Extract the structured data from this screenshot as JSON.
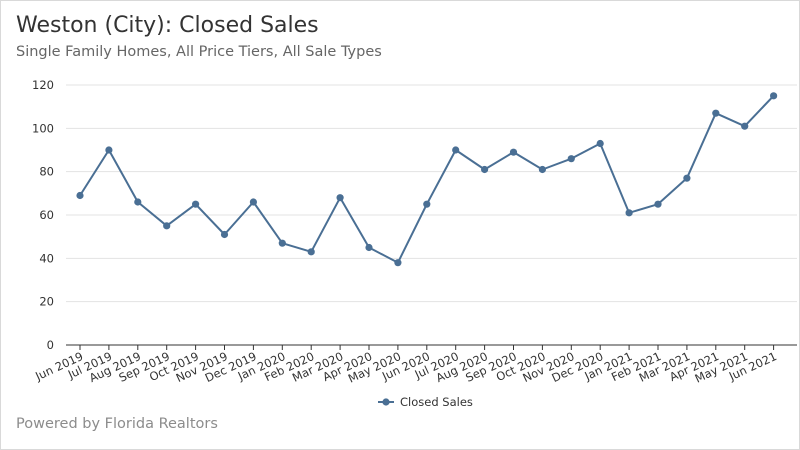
{
  "header": {
    "title": "Weston (City): Closed Sales",
    "subtitle": "Single Family Homes, All Price Tiers, All Sale Types"
  },
  "footer": {
    "credit": "Powered by Florida Realtors"
  },
  "colors": {
    "series": "#4a6f94",
    "grid": "#e3e3e3",
    "axis": "#333333"
  },
  "chart_data": {
    "type": "line",
    "title": "Weston (City): Closed Sales",
    "subtitle": "Single Family Homes, All Price Tiers, All Sale Types",
    "xlabel": "",
    "ylabel": "",
    "ylim": [
      0,
      120
    ],
    "yticks": [
      0,
      20,
      40,
      60,
      80,
      100,
      120
    ],
    "grid": true,
    "legend_position": "bottom",
    "categories": [
      "Jun 2019",
      "Jul 2019",
      "Aug 2019",
      "Sep 2019",
      "Oct 2019",
      "Nov 2019",
      "Dec 2019",
      "Jan 2020",
      "Feb 2020",
      "Mar 2020",
      "Apr 2020",
      "May 2020",
      "Jun 2020",
      "Jul 2020",
      "Aug 2020",
      "Sep 2020",
      "Oct 2020",
      "Nov 2020",
      "Dec 2020",
      "Jan 2021",
      "Feb 2021",
      "Mar 2021",
      "Apr 2021",
      "May 2021",
      "Jun 2021"
    ],
    "series": [
      {
        "name": "Closed Sales",
        "values": [
          69,
          90,
          66,
          55,
          65,
          51,
          66,
          47,
          43,
          68,
          45,
          38,
          65,
          90,
          81,
          89,
          81,
          86,
          93,
          61,
          65,
          77,
          107,
          101,
          115
        ]
      }
    ]
  }
}
